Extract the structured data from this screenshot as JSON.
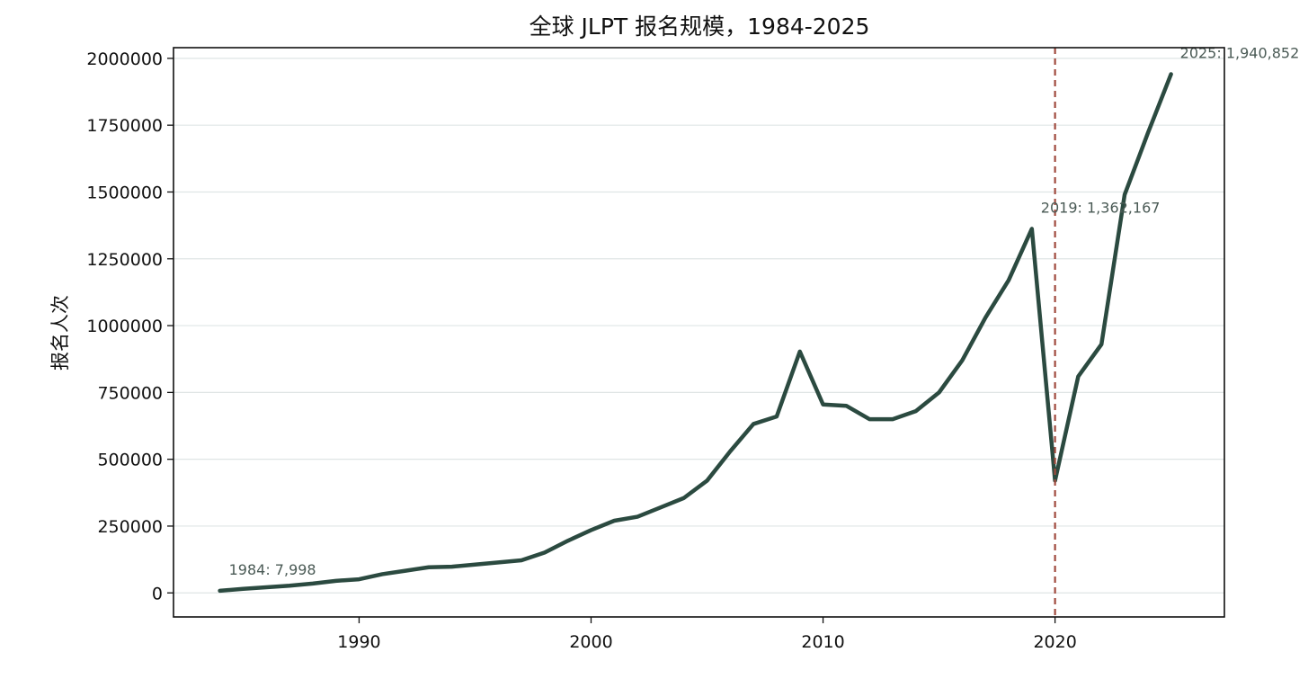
{
  "chart_data": {
    "type": "line",
    "title": "全球 JLPT 报名规模，1984-2025",
    "xlabel": "",
    "ylabel": "报名人次",
    "xlim": [
      1982,
      2027.3
    ],
    "ylim": [
      -90000,
      2040000
    ],
    "x_ticks": [
      1990,
      2000,
      2010,
      2020
    ],
    "y_ticks": [
      0,
      250000,
      500000,
      750000,
      1000000,
      1250000,
      1500000,
      1750000,
      2000000
    ],
    "grid": "horizontal",
    "series": [
      {
        "name": "",
        "color": "#2b4a40",
        "x": [
          1984,
          1985,
          1986,
          1987,
          1988,
          1989,
          1990,
          1991,
          1992,
          1993,
          1994,
          1995,
          1996,
          1997,
          1998,
          1999,
          2000,
          2001,
          2002,
          2003,
          2004,
          2005,
          2006,
          2007,
          2008,
          2009,
          2010,
          2011,
          2012,
          2013,
          2014,
          2015,
          2016,
          2017,
          2018,
          2019,
          2020,
          2021,
          2022,
          2023,
          2024,
          2025
        ],
        "y": [
          7998,
          15000,
          21000,
          27000,
          35000,
          45000,
          51000,
          70000,
          83000,
          96000,
          98000,
          106000,
          114000,
          122000,
          151000,
          195000,
          235000,
          270000,
          285000,
          320000,
          355000,
          420000,
          530000,
          632000,
          660000,
          903000,
          705000,
          700000,
          650000,
          650000,
          680000,
          750000,
          870000,
          1030000,
          1170000,
          1362167,
          420000,
          810000,
          930000,
          1490000,
          1720000,
          1940852
        ]
      }
    ],
    "reference_lines": [
      {
        "axis": "x",
        "value": 2020,
        "color": "#a04a3e",
        "style": "dashed"
      }
    ],
    "annotations": [
      {
        "x": 1984,
        "y": 7998,
        "text": "1984: 7,998"
      },
      {
        "x": 2019,
        "y": 1362167,
        "text": "2019: 1,362,167"
      },
      {
        "x": 2025,
        "y": 1940852,
        "text": "2025: 1,940,852"
      }
    ]
  }
}
